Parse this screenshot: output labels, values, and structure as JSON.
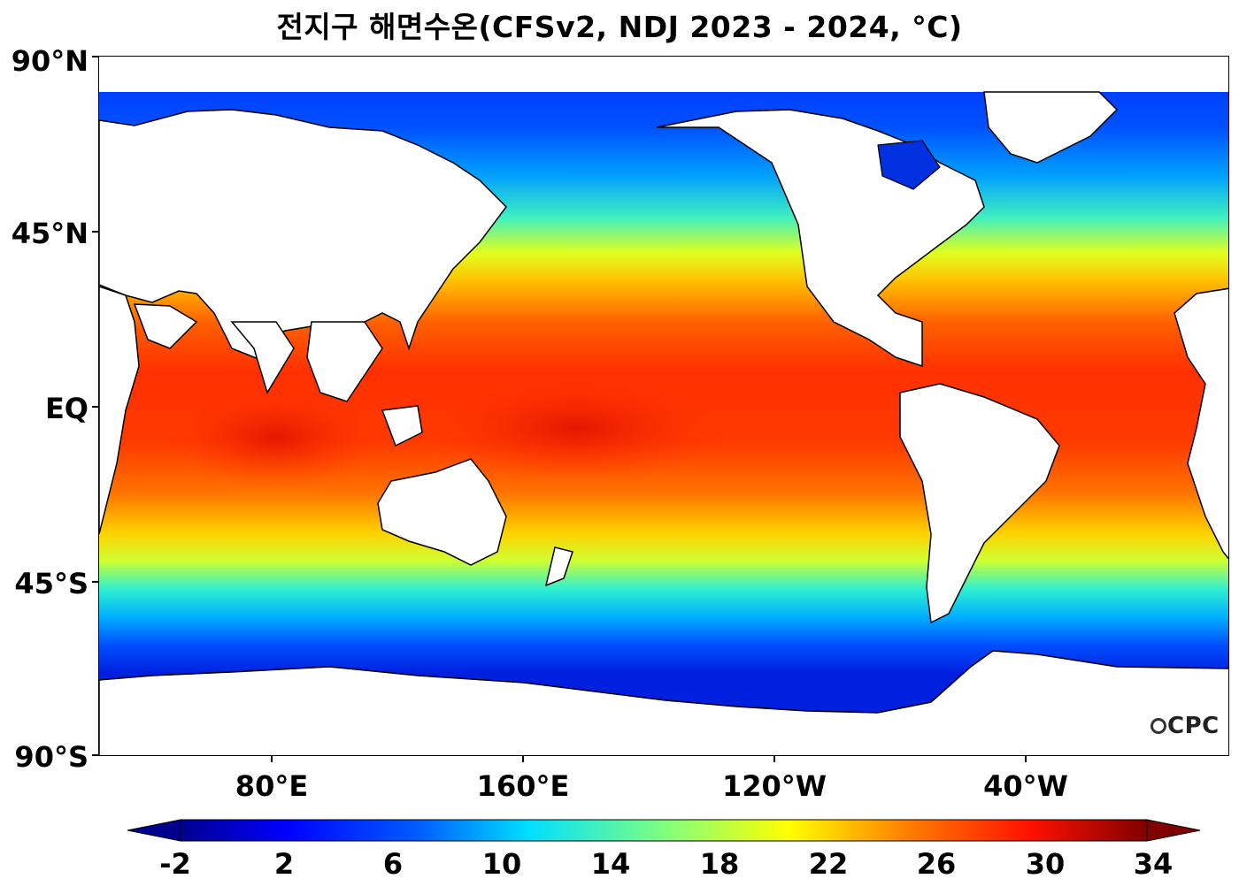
{
  "title": "전지구 해면수온(CFSv2, NDJ 2023 - 2024, °C)",
  "lat_labels": [
    "90°N",
    "45°N",
    "EQ",
    "45°S",
    "90°S"
  ],
  "lon_labels": [
    "80°E",
    "160°E",
    "120°W",
    "40°W"
  ],
  "colorbar": {
    "ticks": [
      "-2",
      "2",
      "6",
      "10",
      "14",
      "18",
      "22",
      "26",
      "30",
      "34"
    ],
    "min": -2,
    "max": 34,
    "colormap": "jet",
    "extend": "both"
  },
  "logo": "CPC"
}
